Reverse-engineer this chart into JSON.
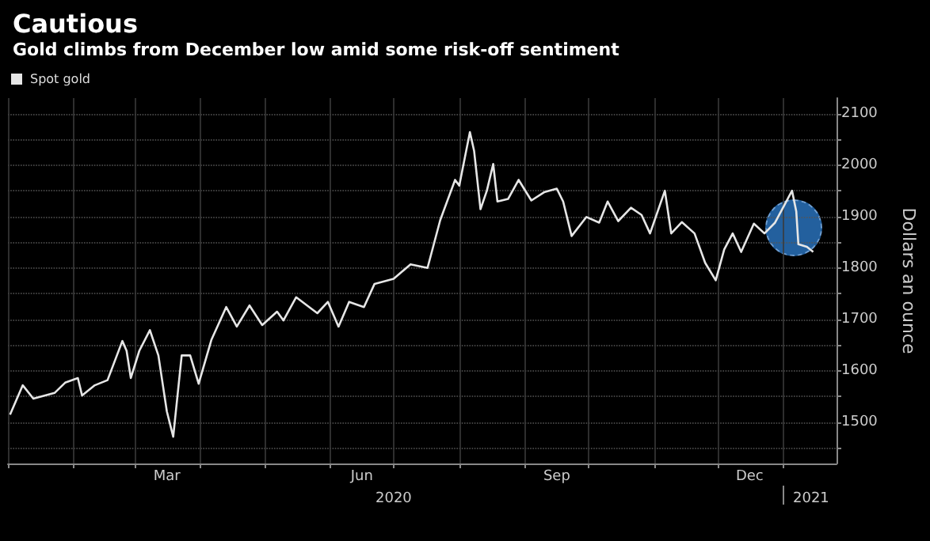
{
  "chart_data": {
    "type": "line",
    "title": "Cautious",
    "subtitle": "Gold climbs from December low amid some risk-off sentiment",
    "ylabel": "Dollars an ounce",
    "x": [
      "2020-01-02",
      "2020-01-08",
      "2020-01-13",
      "2020-01-23",
      "2020-01-28",
      "2020-02-03",
      "2020-02-05",
      "2020-02-11",
      "2020-02-17",
      "2020-02-24",
      "2020-02-26",
      "2020-02-28",
      "2020-03-03",
      "2020-03-08",
      "2020-03-12",
      "2020-03-16",
      "2020-03-19",
      "2020-03-23",
      "2020-03-27",
      "2020-03-31",
      "2020-04-06",
      "2020-04-13",
      "2020-04-18",
      "2020-04-24",
      "2020-04-30",
      "2020-05-07",
      "2020-05-10",
      "2020-05-16",
      "2020-05-26",
      "2020-05-31",
      "2020-06-05",
      "2020-06-10",
      "2020-06-17",
      "2020-06-22",
      "2020-07-01",
      "2020-07-09",
      "2020-07-17",
      "2020-07-23",
      "2020-07-30",
      "2020-08-01",
      "2020-08-06",
      "2020-08-08",
      "2020-08-11",
      "2020-08-14",
      "2020-08-17",
      "2020-08-19",
      "2020-08-24",
      "2020-08-29",
      "2020-09-04",
      "2020-09-10",
      "2020-09-16",
      "2020-09-19",
      "2020-09-23",
      "2020-09-30",
      "2020-10-06",
      "2020-10-10",
      "2020-10-15",
      "2020-10-21",
      "2020-10-26",
      "2020-10-30",
      "2020-11-06",
      "2020-11-09",
      "2020-11-14",
      "2020-11-20",
      "2020-11-25",
      "2020-11-30",
      "2020-12-04",
      "2020-12-08",
      "2020-12-12",
      "2020-12-18",
      "2020-12-23",
      "2020-12-28",
      "2021-01-05",
      "2021-01-07",
      "2021-01-08",
      "2021-01-12",
      "2021-01-15"
    ],
    "series": [
      {
        "name": "Spot gold",
        "color": "#e6e6e6",
        "values": [
          1515,
          1572,
          1546,
          1557,
          1577,
          1586,
          1552,
          1572,
          1582,
          1658,
          1639,
          1586,
          1639,
          1679,
          1630,
          1521,
          1472,
          1630,
          1630,
          1575,
          1660,
          1724,
          1686,
          1727,
          1689,
          1715,
          1698,
          1743,
          1712,
          1734,
          1686,
          1734,
          1724,
          1769,
          1779,
          1807,
          1800,
          1893,
          1971,
          1960,
          2064,
          2027,
          1914,
          1950,
          2002,
          1929,
          1934,
          1971,
          1931,
          1947,
          1954,
          1929,
          1862,
          1899,
          1888,
          1929,
          1891,
          1917,
          1903,
          1867,
          1950,
          1867,
          1889,
          1867,
          1810,
          1776,
          1836,
          1867,
          1831,
          1886,
          1867,
          1888,
          1950,
          1910,
          1846,
          1841,
          1831
        ]
      }
    ],
    "xlim": [
      "2020-01-01",
      "2021-01-26"
    ],
    "xticks": [
      {
        "value": "2020-01-01",
        "label": null
      },
      {
        "value": "2020-02-01",
        "label": null
      },
      {
        "value": "2020-03-01",
        "label": null
      },
      {
        "value": "2020-03-16",
        "label": "Mar"
      },
      {
        "value": "2020-04-01",
        "label": null
      },
      {
        "value": "2020-05-01",
        "label": null
      },
      {
        "value": "2020-06-01",
        "label": null
      },
      {
        "value": "2020-06-16",
        "label": "Jun"
      },
      {
        "value": "2020-07-01",
        "label": null
      },
      {
        "value": "2020-08-01",
        "label": null
      },
      {
        "value": "2020-09-01",
        "label": null
      },
      {
        "value": "2020-09-16",
        "label": "Sep"
      },
      {
        "value": "2020-10-01",
        "label": null
      },
      {
        "value": "2020-11-01",
        "label": null
      },
      {
        "value": "2020-12-01",
        "label": null
      },
      {
        "value": "2020-12-16",
        "label": "Dec"
      },
      {
        "value": "2021-01-01",
        "label": null
      }
    ],
    "x2lim": [
      "2020-01-01",
      "2021-01-26"
    ],
    "x2ticks": [
      {
        "value": "2020-07-01",
        "label": "2020"
      },
      {
        "value": "2021-01-01",
        "label": null
      },
      {
        "value": "2021-01-14",
        "label": "2021"
      }
    ],
    "ylim": [
      1420,
      2130
    ],
    "yticks": [
      {
        "value": 1450,
        "label": null
      },
      1500,
      {
        "value": 1550,
        "label": null
      },
      1600,
      {
        "value": 1650,
        "label": null
      },
      1700,
      {
        "value": 1750,
        "label": null
      },
      1800,
      {
        "value": 1850,
        "label": null
      },
      1900,
      {
        "value": 1950,
        "label": null
      },
      2000,
      {
        "value": 2050,
        "label": null
      },
      2100
    ],
    "grid": true,
    "legend": "top left",
    "marker": "none",
    "line_style": "solid"
  }
}
